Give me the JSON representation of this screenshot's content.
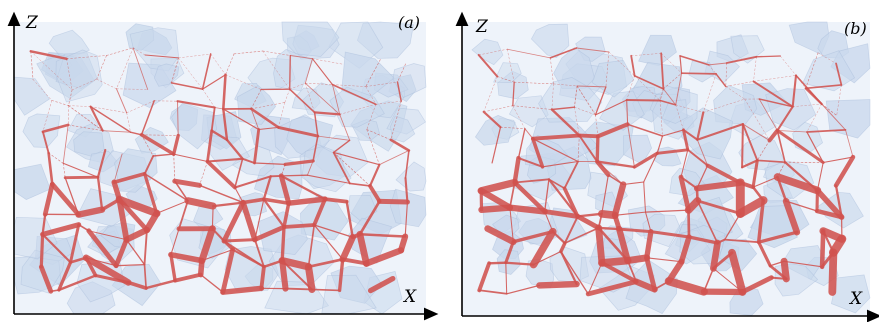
{
  "panels": [
    {
      "id": "a",
      "panel_label": "(a)",
      "z_label": "Z",
      "x_label": "X"
    },
    {
      "id": "b",
      "panel_label": "(b)",
      "z_label": "Z",
      "x_label": "X"
    }
  ],
  "colors": {
    "background_grains": "#c9d8ec",
    "grain_edge": "#a9bedb",
    "network": "#d0524e",
    "axis": "#000000"
  }
}
